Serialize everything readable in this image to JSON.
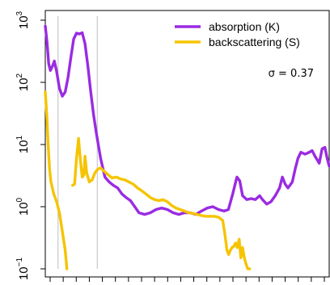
{
  "chart_data": {
    "type": "line",
    "title": "",
    "xlabel": "",
    "ylabel": "",
    "xlim": [
      0,
      100
    ],
    "ylog": true,
    "ylim": [
      0.1,
      1000
    ],
    "yticks": [
      {
        "base": "10",
        "exp": "−1",
        "value": 0.1
      },
      {
        "base": "10",
        "exp": "0",
        "value": 1
      },
      {
        "base": "10",
        "exp": "1",
        "value": 10
      },
      {
        "base": "10",
        "exp": "2",
        "value": 100
      },
      {
        "base": "10",
        "exp": "3",
        "value": 1000
      }
    ],
    "xtick_count": 22,
    "vlines": [
      4.5,
      18.3
    ],
    "annotation": "σ = 0.37",
    "legend_position": "top-right",
    "series": [
      {
        "name": "absorption (K)",
        "color": "#9a2be2",
        "segments": [
          [
            [
              0,
              800
            ],
            [
              0.6,
              450
            ],
            [
              1.2,
              200
            ],
            [
              1.8,
              155
            ],
            [
              2.5,
              180
            ],
            [
              3.2,
              220
            ],
            [
              4.0,
              150
            ],
            [
              5.0,
              80
            ],
            [
              6.0,
              60
            ],
            [
              7.0,
              70
            ],
            [
              8.0,
              120
            ],
            [
              9.0,
              250
            ],
            [
              10.0,
              500
            ],
            [
              11.0,
              620
            ],
            [
              12.0,
              600
            ],
            [
              13.0,
              630
            ],
            [
              14.0,
              420
            ],
            [
              15.0,
              180
            ],
            [
              16.0,
              70
            ],
            [
              17.0,
              30
            ],
            [
              18.0,
              15
            ],
            [
              19.5,
              6
            ],
            [
              21.0,
              3
            ],
            [
              22.5,
              2.5
            ],
            [
              24.0,
              2.2
            ],
            [
              25.5,
              2.0
            ],
            [
              27.0,
              1.6
            ],
            [
              28.5,
              1.4
            ],
            [
              30.0,
              1.25
            ],
            [
              31.5,
              1.0
            ],
            [
              33.0,
              0.8
            ],
            [
              35.0,
              0.75
            ],
            [
              37.0,
              0.8
            ],
            [
              39.0,
              0.9
            ],
            [
              41.0,
              0.95
            ],
            [
              43.0,
              0.9
            ],
            [
              45.0,
              0.8
            ],
            [
              47.0,
              0.75
            ],
            [
              49.0,
              0.8
            ],
            [
              51.0,
              0.8
            ],
            [
              53.0,
              0.75
            ],
            [
              55.0,
              0.85
            ],
            [
              57.0,
              0.95
            ],
            [
              59.0,
              1.0
            ],
            [
              61.0,
              0.9
            ],
            [
              63.0,
              0.85
            ],
            [
              64.5,
              0.9
            ],
            [
              66.0,
              1.6
            ],
            [
              67.5,
              3.0
            ],
            [
              68.5,
              2.6
            ],
            [
              69.5,
              1.5
            ],
            [
              71.0,
              1.3
            ],
            [
              72.5,
              1.35
            ],
            [
              74.0,
              1.3
            ],
            [
              75.5,
              1.5
            ],
            [
              76.5,
              1.3
            ],
            [
              78.0,
              1.1
            ],
            [
              79.5,
              1.2
            ],
            [
              81.0,
              1.5
            ],
            [
              82.5,
              2.0
            ],
            [
              83.5,
              3.0
            ],
            [
              84.5,
              2.3
            ],
            [
              85.5,
              2.0
            ],
            [
              87.0,
              2.5
            ],
            [
              88.0,
              4.0
            ],
            [
              89.0,
              6.0
            ],
            [
              90.0,
              7.5
            ],
            [
              91.5,
              7.0
            ],
            [
              93.0,
              7.5
            ],
            [
              94.0,
              8.0
            ],
            [
              95.0,
              6.5
            ],
            [
              96.5,
              5.0
            ],
            [
              97.5,
              8.5
            ],
            [
              98.5,
              9.0
            ],
            [
              99.3,
              6.0
            ],
            [
              100.0,
              4.5
            ]
          ]
        ]
      },
      {
        "name": "backscattering (S)",
        "color": "#f5c400",
        "segments": [
          [
            [
              0,
              70
            ],
            [
              0.5,
              30
            ],
            [
              1.0,
              10
            ],
            [
              1.5,
              4
            ],
            [
              2.0,
              2.5
            ],
            [
              3.0,
              1.6
            ],
            [
              4.0,
              1.2
            ],
            [
              5.0,
              0.8
            ],
            [
              6.0,
              0.4
            ],
            [
              7.0,
              0.2
            ],
            [
              7.6,
              0.1
            ]
          ],
          [
            [
              9.6,
              2.2
            ],
            [
              10.3,
              2.3
            ],
            [
              11.0,
              6.0
            ],
            [
              11.7,
              12.5
            ],
            [
              12.3,
              6.0
            ],
            [
              13.0,
              3.0
            ],
            [
              13.6,
              3.2
            ],
            [
              14.0,
              6.5
            ],
            [
              14.6,
              3.5
            ],
            [
              15.5,
              2.5
            ],
            [
              16.5,
              2.7
            ],
            [
              17.5,
              3.5
            ],
            [
              18.5,
              4.0
            ],
            [
              19.5,
              4.2
            ],
            [
              20.5,
              3.8
            ],
            [
              22.0,
              3.3
            ],
            [
              23.5,
              2.9
            ],
            [
              25.0,
              3.0
            ],
            [
              26.5,
              2.8
            ],
            [
              28.0,
              2.7
            ],
            [
              29.5,
              2.5
            ],
            [
              31.0,
              2.3
            ],
            [
              32.5,
              2.0
            ],
            [
              34.0,
              1.8
            ],
            [
              35.5,
              1.6
            ],
            [
              37.0,
              1.4
            ],
            [
              38.5,
              1.3
            ],
            [
              40.0,
              1.25
            ],
            [
              41.5,
              1.3
            ],
            [
              43.0,
              1.2
            ],
            [
              44.5,
              1.05
            ],
            [
              46.0,
              0.95
            ],
            [
              47.5,
              0.9
            ],
            [
              49.0,
              0.85
            ],
            [
              50.5,
              0.8
            ],
            [
              52.0,
              0.78
            ],
            [
              53.5,
              0.75
            ],
            [
              55.0,
              0.72
            ],
            [
              56.5,
              0.7
            ],
            [
              58.0,
              0.7
            ],
            [
              59.5,
              0.7
            ],
            [
              61.0,
              0.68
            ],
            [
              62.5,
              0.6
            ],
            [
              63.3,
              0.35
            ],
            [
              64.0,
              0.2
            ],
            [
              64.6,
              0.17
            ],
            [
              65.2,
              0.2
            ],
            [
              65.8,
              0.22
            ],
            [
              66.4,
              0.23
            ],
            [
              67.0,
              0.26
            ],
            [
              67.6,
              0.22
            ],
            [
              68.3,
              0.3
            ],
            [
              68.9,
              0.15
            ],
            [
              69.5,
              0.22
            ],
            [
              70.1,
              0.15
            ],
            [
              70.7,
              0.12
            ],
            [
              71.3,
              0.1
            ],
            [
              72.0,
              0.1
            ]
          ]
        ]
      }
    ]
  }
}
